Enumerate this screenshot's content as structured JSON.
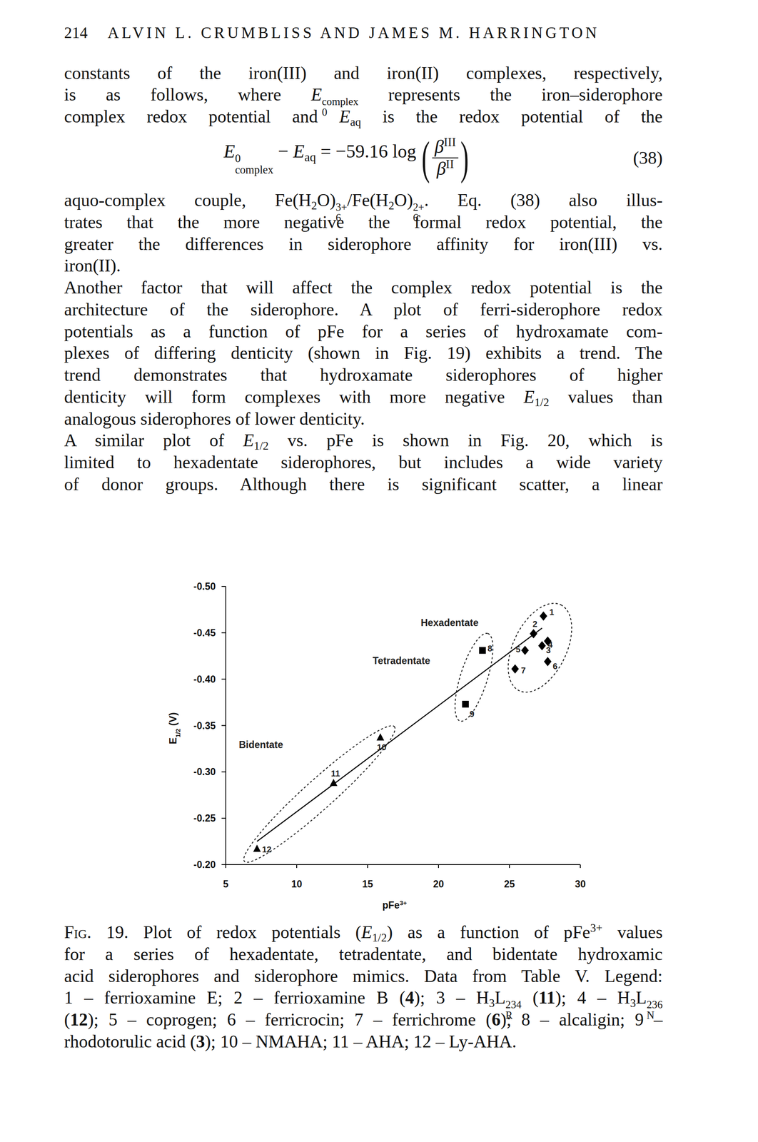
{
  "header": {
    "page_number": "214",
    "running_head": "ALVIN L. CRUMBLISS AND JAMES M. HARRINGTON"
  },
  "text_before_equation": [
    [
      "constants of the iron(III) and iron(II) complexes, respectively,"
    ],
    [
      "is as follows, where ",
      {
        "i": "E"
      },
      {
        "supsub": [
          "complex",
          "0"
        ]
      },
      " represents the iron–siderophore"
    ],
    [
      "complex redox potential and ",
      {
        "i": "E"
      },
      {
        "sub": "aq"
      },
      " is the redox potential of the"
    ]
  ],
  "equation": {
    "lhs": [
      {
        "i": "E"
      },
      {
        "supsub": [
          "0",
          "complex"
        ]
      },
      " − ",
      {
        "i": "E"
      },
      {
        "sub": "aq"
      },
      " = −59.16 log"
    ],
    "open": "(",
    "numerator": [
      {
        "i": "β"
      },
      {
        "sup": "III"
      }
    ],
    "denominator": [
      {
        "i": "β"
      },
      {
        "sup": "II"
      }
    ],
    "close": ")",
    "number": "(38)"
  },
  "paragraphs": [
    [
      [
        "aquo-complex couple, Fe(H",
        {
          "sub": "2"
        },
        "O)",
        {
          "supsub": [
            "3+",
            "6"
          ]
        },
        "/Fe(H",
        {
          "sub": "2"
        },
        "O)",
        {
          "supsub": [
            "2+",
            "6"
          ]
        },
        ". Eq. (38) also illus-"
      ],
      [
        "trates that the more negative the formal redox potential, the"
      ],
      [
        "greater the differences in siderophore affinity for iron(III) vs."
      ],
      [
        "iron(II)."
      ]
    ],
    [
      [
        "Another factor that will affect the complex redox potential is the"
      ],
      [
        "architecture of the siderophore. A plot of ferri-siderophore redox"
      ],
      [
        "potentials as a function of pFe for a series of hydroxamate com-"
      ],
      [
        "plexes of differing denticity (shown in Fig. 19) exhibits a trend. The"
      ],
      [
        "trend demonstrates that hydroxamate siderophores of higher"
      ],
      [
        "denticity will form complexes with more negative ",
        {
          "i": "E"
        },
        {
          "sub": "1/2"
        },
        " values than"
      ],
      [
        "analogous siderophores of lower denticity."
      ]
    ],
    [
      [
        "A similar plot of ",
        {
          "i": "E"
        },
        {
          "sub": "1/2"
        },
        " vs. pFe is shown in Fig. 20, which is"
      ],
      [
        "limited to hexadentate siderophores, but includes a wide variety"
      ],
      [
        "of donor groups. Although there is significant scatter, a linear"
      ]
    ]
  ],
  "chart_data": {
    "type": "scatter",
    "x_label": {
      "text": "pFe",
      "sup": "3+"
    },
    "y_label": {
      "text": "E",
      "sub": "1/2",
      "suffix": " (V)"
    },
    "xlim": [
      5,
      30
    ],
    "xticks": [
      5,
      10,
      15,
      20,
      25,
      30
    ],
    "ylim": [
      -0.2,
      -0.5
    ],
    "yticks": [
      {
        "value": -0.5,
        "label": "-0.50"
      },
      {
        "value": -0.45,
        "label": "-0.45"
      },
      {
        "value": -0.4,
        "label": "-0.40"
      },
      {
        "value": -0.35,
        "label": "-0.35"
      },
      {
        "value": -0.3,
        "label": "-0.30"
      },
      {
        "value": -0.25,
        "label": "-0.25"
      },
      {
        "value": -0.2,
        "label": "-0.20"
      }
    ],
    "series": [
      {
        "name": "Hexadentate",
        "marker": "diamond",
        "color": "#000000",
        "x": [
          27.4,
          26.7,
          27.7,
          27.3,
          26.1,
          27.7,
          25.4
        ],
        "values": [
          -0.468,
          -0.449,
          -0.441,
          -0.436,
          -0.431,
          -0.419,
          -0.411
        ],
        "labels": [
          "1",
          "2",
          "3",
          "4",
          "5",
          "6",
          "7"
        ]
      },
      {
        "name": "Tetradentate",
        "marker": "square",
        "color": "#000000",
        "x": [
          23.1,
          21.9
        ],
        "values": [
          -0.431,
          -0.373
        ],
        "labels": [
          "8",
          "9"
        ]
      },
      {
        "name": "Bidentate",
        "marker": "triangle",
        "color": "#000000",
        "x": [
          15.9,
          12.6,
          7.2
        ],
        "values": [
          -0.337,
          -0.288,
          -0.217
        ],
        "labels": [
          "10",
          "11",
          "12"
        ]
      }
    ],
    "trendline": {
      "x": [
        7.2,
        27.3
      ],
      "values": [
        -0.225,
        -0.455
      ]
    }
  },
  "caption": [
    [
      {
        "sc": "Fig."
      },
      " 19. Plot of redox potentials (",
      {
        "i": "E"
      },
      {
        "sub": "1/2"
      },
      ") as a function of pFe",
      {
        "sup": "3+"
      },
      " values"
    ],
    [
      "for a series of hexadentate, tetradentate, and bidentate hydroxamic"
    ],
    [
      "acid siderophores and siderophore mimics. Data from Table V. Legend:"
    ],
    [
      "1 – ferrioxamine E; 2 – ferrioxamine B (",
      {
        "b": "4"
      },
      "); 3 – H",
      {
        "sub": "3"
      },
      "L",
      {
        "supsub": [
          "234",
          "R"
        ]
      },
      " (",
      {
        "b": "11"
      },
      "); 4 – H",
      {
        "sub": "3"
      },
      "L",
      {
        "supsub": [
          "236",
          "N"
        ]
      }
    ],
    [
      "(",
      {
        "b": "12"
      },
      "); 5 – coprogen; 6 – ferricrocin; 7 – ferrichrome (",
      {
        "b": "6"
      },
      "); 8 – alcaligin; 9 –"
    ],
    [
      "rhodotorulic acid (",
      {
        "b": "3"
      },
      "); 10 – NMAHA; 11 – AHA; 12 – Ly-AHA."
    ]
  ]
}
